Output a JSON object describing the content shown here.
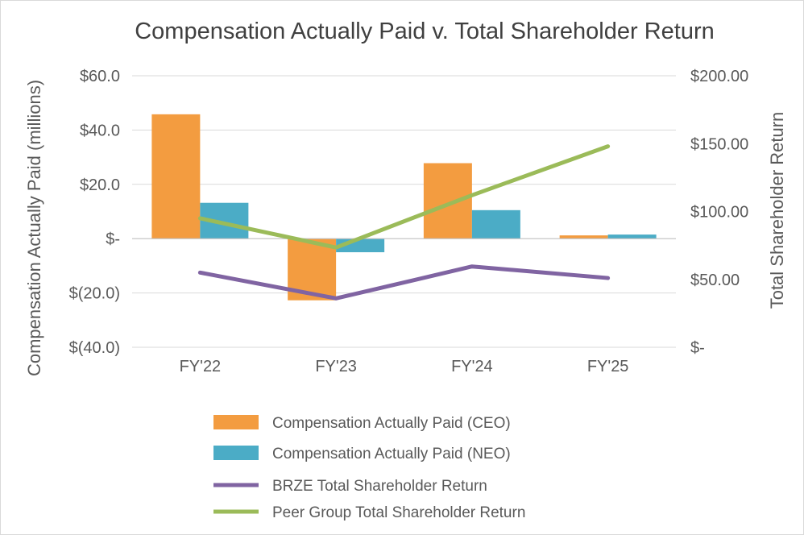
{
  "chart_data": {
    "type": "bar",
    "title": "Compensation Actually Paid v. Total Shareholder Return",
    "categories": [
      "FY'22",
      "FY'23",
      "FY'24",
      "FY'25"
    ],
    "ylabel_left": "Compensation Actually Paid (millions)",
    "ylabel_right": "Total Shareholder Return",
    "ylim_left": [
      -40,
      60
    ],
    "ylim_right": [
      0,
      200
    ],
    "left_ticks": [
      {
        "value": 60,
        "label": "$60.0"
      },
      {
        "value": 40,
        "label": "$40.0"
      },
      {
        "value": 20,
        "label": "$20.0"
      },
      {
        "value": 0,
        "label": "$-"
      },
      {
        "value": -20,
        "label": "$(20.0)"
      },
      {
        "value": -40,
        "label": "$(40.0)"
      }
    ],
    "right_ticks": [
      {
        "value": 200,
        "label": "$200.00"
      },
      {
        "value": 150,
        "label": "$150.00"
      },
      {
        "value": 100,
        "label": "$100.00"
      },
      {
        "value": 50,
        "label": "$50.00"
      },
      {
        "value": 0,
        "label": "$-"
      }
    ],
    "gridlines": true,
    "legend_position": "bottom",
    "series": [
      {
        "name": "Compensation Actually Paid (CEO)",
        "kind": "bar",
        "axis": "left",
        "color": "#F39C40",
        "values": [
          45.8,
          -22.7,
          27.8,
          1.2
        ]
      },
      {
        "name": "Compensation Actually Paid (NEO)",
        "kind": "bar",
        "axis": "left",
        "color": "#4BACC6",
        "values": [
          13.2,
          -5.0,
          10.5,
          1.5
        ]
      },
      {
        "name": "BRZE Total Shareholder Return",
        "kind": "line",
        "axis": "right",
        "color": "#8064A2",
        "values": [
          55.0,
          36.0,
          59.5,
          51.0
        ]
      },
      {
        "name": "Peer Group Total Shareholder Return",
        "kind": "line",
        "axis": "right",
        "color": "#9BBB59",
        "values": [
          95.0,
          73.5,
          112.0,
          148.0
        ]
      }
    ]
  }
}
